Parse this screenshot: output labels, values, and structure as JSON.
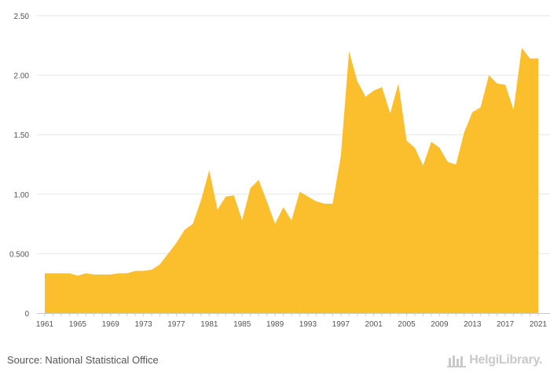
{
  "chart_data": {
    "type": "area",
    "title": "",
    "xlabel": "",
    "ylabel": "",
    "ylim": [
      0,
      2.5
    ],
    "grid": true,
    "color": "#fbbe2c",
    "years": [
      1961,
      1962,
      1963,
      1964,
      1965,
      1966,
      1967,
      1968,
      1969,
      1970,
      1971,
      1972,
      1973,
      1974,
      1975,
      1976,
      1977,
      1978,
      1979,
      1980,
      1981,
      1982,
      1983,
      1984,
      1985,
      1986,
      1987,
      1988,
      1989,
      1990,
      1991,
      1992,
      1993,
      1994,
      1995,
      1996,
      1997,
      1998,
      1999,
      2000,
      2001,
      2002,
      2003,
      2004,
      2005,
      2006,
      2007,
      2008,
      2009,
      2010,
      2011,
      2012,
      2013,
      2014,
      2015,
      2016,
      2017,
      2018,
      2019,
      2020,
      2021
    ],
    "values": [
      0.335,
      0.335,
      0.335,
      0.335,
      0.315,
      0.335,
      0.325,
      0.325,
      0.325,
      0.335,
      0.335,
      0.355,
      0.355,
      0.365,
      0.41,
      0.5,
      0.59,
      0.7,
      0.75,
      0.95,
      1.2,
      0.87,
      0.98,
      0.99,
      0.78,
      1.05,
      1.12,
      0.94,
      0.75,
      0.89,
      0.78,
      1.02,
      0.98,
      0.94,
      0.92,
      0.92,
      1.32,
      2.2,
      1.95,
      1.82,
      1.87,
      1.9,
      1.68,
      1.93,
      1.45,
      1.39,
      1.24,
      1.44,
      1.39,
      1.27,
      1.25,
      1.52,
      1.69,
      1.73,
      2.0,
      1.93,
      1.92,
      1.71,
      2.23,
      2.14,
      2.14
    ],
    "y_ticks": [
      {
        "value": 0,
        "label": "0"
      },
      {
        "value": 0.5,
        "label": "0.500"
      },
      {
        "value": 1.0,
        "label": "1.00"
      },
      {
        "value": 1.5,
        "label": "1.50"
      },
      {
        "value": 2.0,
        "label": "2.00"
      },
      {
        "value": 2.5,
        "label": "2.50"
      }
    ],
    "x_ticks": [
      "1961",
      "1965",
      "1969",
      "1973",
      "1977",
      "1981",
      "1985",
      "1989",
      "1993",
      "1997",
      "2001",
      "2005",
      "2009",
      "2013",
      "2017",
      "2021"
    ]
  },
  "footer": {
    "source": "Source: National Statistical Office",
    "brand": "HelgiLibrary."
  },
  "colors": {
    "area": "#fbbe2c",
    "grid": "#e6e6e6",
    "axis": "#cccccc",
    "text": "#555555"
  }
}
